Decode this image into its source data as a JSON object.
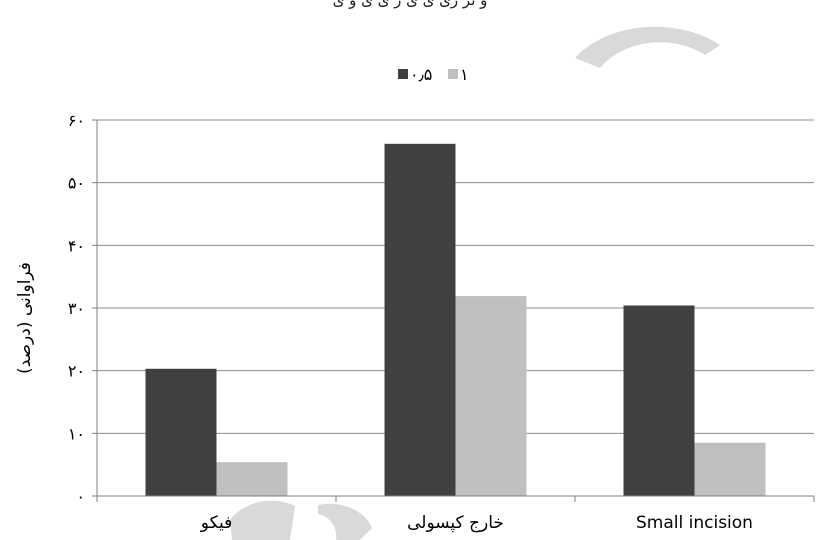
{
  "top_text": "و تر ری ی ی ر  ی ی    و ی ",
  "chart_data": {
    "type": "bar",
    "title": "",
    "xlabel": "",
    "ylabel": "فراوانی (درصد)",
    "categories": [
      "فیکو",
      "خارج کپسولی",
      "Small incision"
    ],
    "series": [
      {
        "name": "۰٫۵",
        "color": "#404040",
        "values": [
          20.3,
          56.2,
          30.4
        ]
      },
      {
        "name": "۱",
        "color": "#bfbfbf",
        "values": [
          5.4,
          31.9,
          8.5
        ]
      }
    ],
    "ylim": [
      0,
      60
    ],
    "yticks": [
      0,
      10,
      20,
      30,
      40,
      50,
      60
    ],
    "ytick_labels": [
      "۰",
      "۱۰",
      "۲۰",
      "۳۰",
      "۴۰",
      "۵۰",
      "۶۰"
    ],
    "grid": true,
    "legend_position": "top-center",
    "watermark_color": "#d9d9d9"
  }
}
